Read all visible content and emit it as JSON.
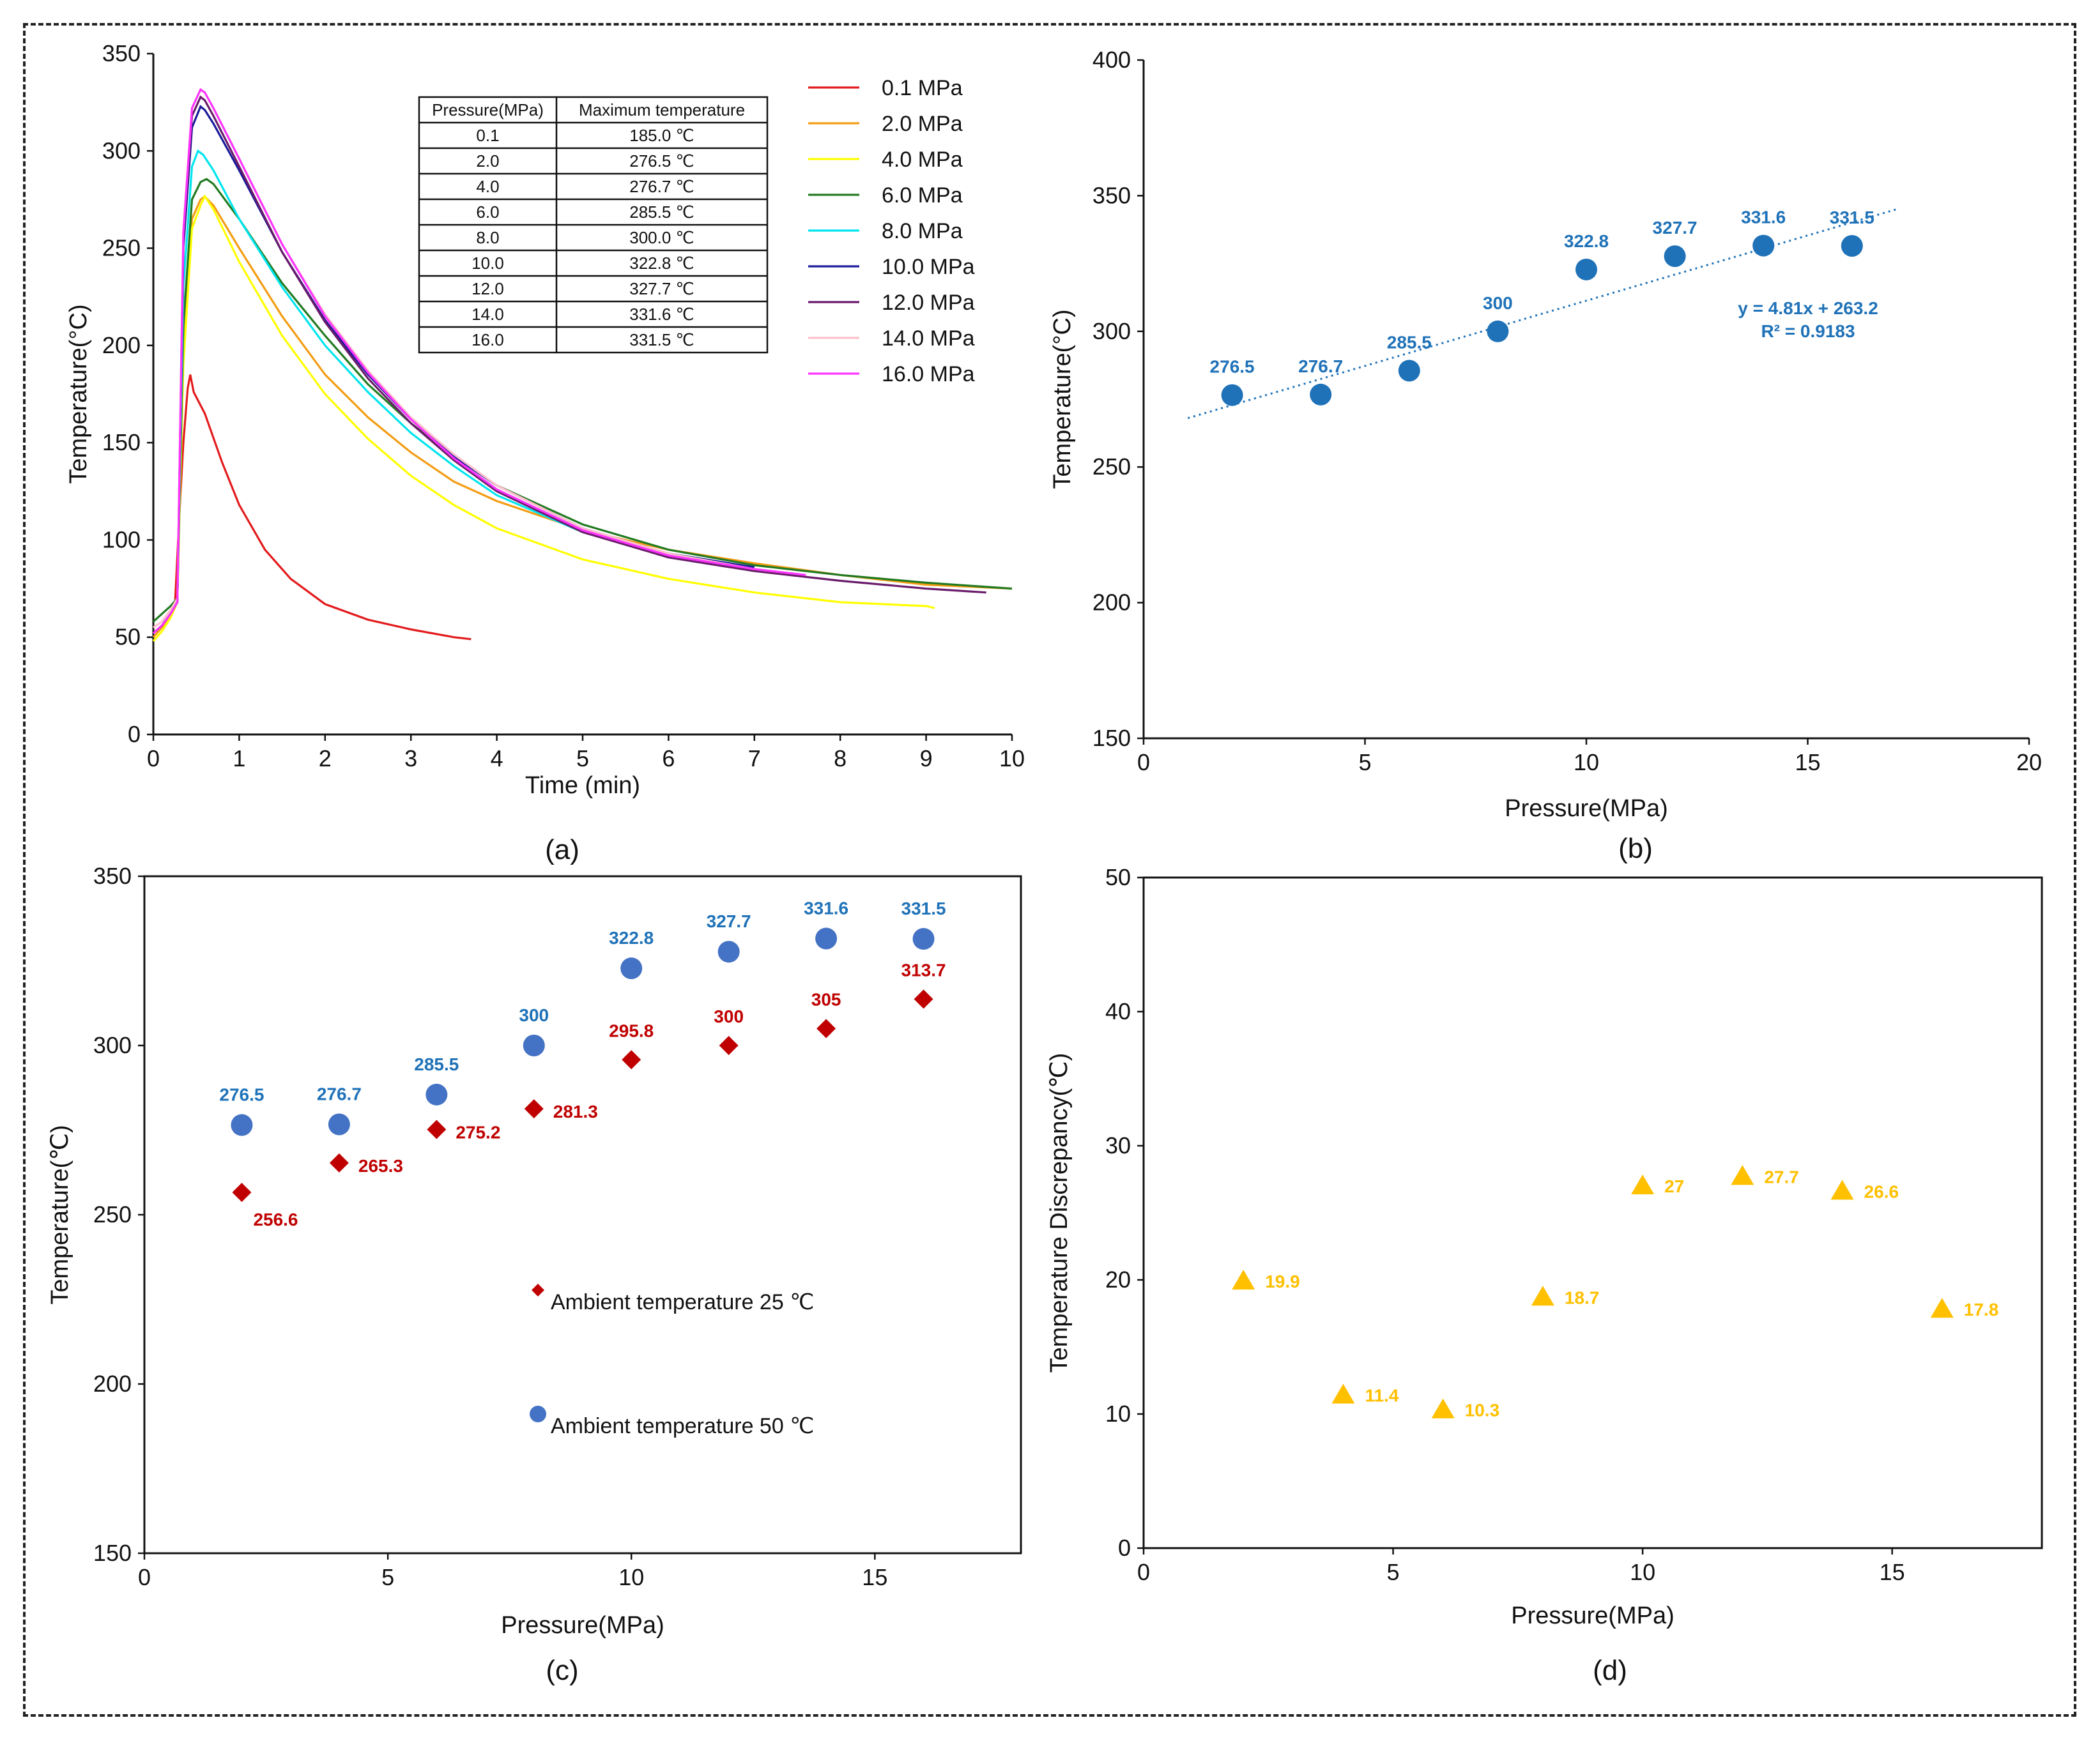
{
  "colors": {
    "blue_point": "#1f72b8",
    "blue_point_c": "#4472c4",
    "red_point": "#c00000",
    "yellow_point": "#ffc000",
    "axis": "#111111"
  },
  "chart_data": [
    {
      "id": "a",
      "type": "line",
      "caption": "(a)",
      "xlabel": "Time (min)",
      "ylabel": "Temperature(°C)",
      "xlim": [
        0,
        10
      ],
      "ylim": [
        0,
        350
      ],
      "xticks": [
        0,
        1,
        2,
        3,
        4,
        5,
        6,
        7,
        8,
        9,
        10
      ],
      "yticks": [
        0,
        50,
        100,
        150,
        200,
        250,
        300,
        350
      ],
      "series": [
        {
          "name": "0.1 MPa",
          "color": "#e31a1c",
          "points": [
            [
              0,
              52
            ],
            [
              0.1,
              56
            ],
            [
              0.2,
              62
            ],
            [
              0.25,
              65
            ],
            [
              0.3,
              110
            ],
            [
              0.35,
              150
            ],
            [
              0.4,
              178
            ],
            [
              0.43,
              185
            ],
            [
              0.47,
              176
            ],
            [
              0.6,
              165
            ],
            [
              0.8,
              140
            ],
            [
              1.0,
              118
            ],
            [
              1.3,
              95
            ],
            [
              1.6,
              80
            ],
            [
              2.0,
              67
            ],
            [
              2.5,
              59
            ],
            [
              3.0,
              54
            ],
            [
              3.5,
              50
            ],
            [
              3.7,
              49
            ]
          ]
        },
        {
          "name": "2.0 MPa",
          "color": "#f39c12",
          "points": [
            [
              0,
              50
            ],
            [
              0.1,
              55
            ],
            [
              0.2,
              62
            ],
            [
              0.28,
              70
            ],
            [
              0.35,
              200
            ],
            [
              0.45,
              265
            ],
            [
              0.55,
              275
            ],
            [
              0.6,
              276.5
            ],
            [
              0.7,
              272
            ],
            [
              1.0,
              250
            ],
            [
              1.5,
              215
            ],
            [
              2.0,
              185
            ],
            [
              2.5,
              163
            ],
            [
              3.0,
              145
            ],
            [
              3.5,
              130
            ],
            [
              4.0,
              120
            ],
            [
              5.0,
              105
            ],
            [
              6.0,
              95
            ],
            [
              7.0,
              88
            ],
            [
              8.0,
              82
            ],
            [
              9.0,
              77
            ],
            [
              10,
              75
            ]
          ]
        },
        {
          "name": "4.0 MPa",
          "color": "#ffff00",
          "points": [
            [
              0,
              48
            ],
            [
              0.1,
              53
            ],
            [
              0.2,
              60
            ],
            [
              0.28,
              68
            ],
            [
              0.35,
              190
            ],
            [
              0.45,
              260
            ],
            [
              0.55,
              272
            ],
            [
              0.6,
              276.7
            ],
            [
              0.7,
              270
            ],
            [
              1.0,
              243
            ],
            [
              1.5,
              205
            ],
            [
              2.0,
              175
            ],
            [
              2.5,
              152
            ],
            [
              3.0,
              133
            ],
            [
              3.5,
              118
            ],
            [
              4.0,
              106
            ],
            [
              5.0,
              90
            ],
            [
              6.0,
              80
            ],
            [
              7.0,
              73
            ],
            [
              8.0,
              68
            ],
            [
              9.0,
              66
            ],
            [
              9.1,
              65
            ]
          ]
        },
        {
          "name": "6.0 MPa",
          "color": "#217a21",
          "points": [
            [
              0,
              58
            ],
            [
              0.1,
              62
            ],
            [
              0.2,
              66
            ],
            [
              0.28,
              70
            ],
            [
              0.35,
              210
            ],
            [
              0.45,
              275
            ],
            [
              0.55,
              284
            ],
            [
              0.62,
              285.5
            ],
            [
              0.7,
              283
            ],
            [
              1.0,
              265
            ],
            [
              1.5,
              232
            ],
            [
              2.0,
              205
            ],
            [
              2.5,
              180
            ],
            [
              3.0,
              160
            ],
            [
              3.5,
              143
            ],
            [
              4.0,
              128
            ],
            [
              5.0,
              108
            ],
            [
              6.0,
              95
            ],
            [
              7.0,
              87
            ],
            [
              8.0,
              82
            ],
            [
              9.0,
              78
            ],
            [
              10,
              75
            ]
          ]
        },
        {
          "name": "8.0 MPa",
          "color": "#00e5ee",
          "points": [
            [
              0,
              52
            ],
            [
              0.1,
              56
            ],
            [
              0.2,
              62
            ],
            [
              0.28,
              68
            ],
            [
              0.35,
              230
            ],
            [
              0.45,
              292
            ],
            [
              0.52,
              300
            ],
            [
              0.58,
              298
            ],
            [
              0.7,
              290
            ],
            [
              1.0,
              265
            ],
            [
              1.5,
              230
            ],
            [
              2.0,
              200
            ],
            [
              2.5,
              176
            ],
            [
              3.0,
              155
            ],
            [
              3.5,
              138
            ],
            [
              4.0,
              123
            ],
            [
              5.0,
              104
            ],
            [
              6.0,
              92
            ],
            [
              7.0,
              85
            ]
          ]
        },
        {
          "name": "10.0 MPa",
          "color": "#1a1a9a",
          "points": [
            [
              0,
              52
            ],
            [
              0.1,
              56
            ],
            [
              0.2,
              62
            ],
            [
              0.28,
              68
            ],
            [
              0.35,
              250
            ],
            [
              0.45,
              312
            ],
            [
              0.55,
              322.8
            ],
            [
              0.6,
              321
            ],
            [
              0.7,
              314
            ],
            [
              1.0,
              290
            ],
            [
              1.5,
              248
            ],
            [
              2.0,
              213
            ],
            [
              2.5,
              185
            ],
            [
              3.0,
              162
            ],
            [
              3.5,
              143
            ],
            [
              4.0,
              128
            ],
            [
              5.0,
              106
            ],
            [
              6.0,
              93
            ],
            [
              7.0,
              86
            ]
          ]
        },
        {
          "name": "12.0 MPa",
          "color": "#6a1b6a",
          "points": [
            [
              0,
              52
            ],
            [
              0.1,
              56
            ],
            [
              0.2,
              62
            ],
            [
              0.28,
              68
            ],
            [
              0.35,
              255
            ],
            [
              0.45,
              318
            ],
            [
              0.55,
              327.7
            ],
            [
              0.6,
              326
            ],
            [
              0.7,
              318
            ],
            [
              1.0,
              292
            ],
            [
              1.5,
              248
            ],
            [
              2.0,
              212
            ],
            [
              2.5,
              183
            ],
            [
              3.0,
              160
            ],
            [
              3.5,
              141
            ],
            [
              4.0,
              125
            ],
            [
              5.0,
              104
            ],
            [
              6.0,
              91
            ],
            [
              7.0,
              84
            ],
            [
              8.0,
              79
            ],
            [
              9.0,
              75
            ],
            [
              9.7,
              73
            ]
          ]
        },
        {
          "name": "14.0 MPa",
          "color": "#ffc0cb",
          "points": [
            [
              0,
              55
            ],
            [
              0.1,
              58
            ],
            [
              0.2,
              64
            ],
            [
              0.28,
              70
            ],
            [
              0.35,
              260
            ],
            [
              0.45,
              322
            ],
            [
              0.55,
              331.6
            ],
            [
              0.6,
              330
            ],
            [
              0.7,
              322
            ],
            [
              1.0,
              296
            ],
            [
              1.5,
              252
            ],
            [
              2.0,
              216
            ],
            [
              2.5,
              187
            ],
            [
              3.0,
              163
            ],
            [
              3.5,
              144
            ],
            [
              4.0,
              128
            ],
            [
              5.0,
              106
            ],
            [
              6.0,
              93
            ],
            [
              7.0,
              85
            ],
            [
              7.6,
              82
            ]
          ]
        },
        {
          "name": "16.0 MPa",
          "color": "#ff33ff",
          "points": [
            [
              0,
              52
            ],
            [
              0.1,
              56
            ],
            [
              0.2,
              62
            ],
            [
              0.28,
              68
            ],
            [
              0.35,
              258
            ],
            [
              0.45,
              322
            ],
            [
              0.55,
              331.5
            ],
            [
              0.6,
              330
            ],
            [
              0.7,
              322
            ],
            [
              1.0,
              296
            ],
            [
              1.5,
              252
            ],
            [
              2.0,
              215
            ],
            [
              2.5,
              186
            ],
            [
              3.0,
              162
            ],
            [
              3.5,
              142
            ],
            [
              4.0,
              126
            ],
            [
              5.0,
              105
            ],
            [
              6.0,
              92
            ],
            [
              7.0,
              85
            ],
            [
              7.6,
              82
            ]
          ]
        }
      ],
      "table": {
        "headers": [
          "Pressure(MPa)",
          "Maximum temperature"
        ],
        "rows": [
          [
            "0.1",
            "185.0 ℃"
          ],
          [
            "2.0",
            "276.5 ℃"
          ],
          [
            "4.0",
            "276.7 ℃"
          ],
          [
            "6.0",
            "285.5 ℃"
          ],
          [
            "8.0",
            "300.0 ℃"
          ],
          [
            "10.0",
            "322.8 ℃"
          ],
          [
            "12.0",
            "327.7 ℃"
          ],
          [
            "14.0",
            "331.6 ℃"
          ],
          [
            "16.0",
            "331.5 ℃"
          ]
        ]
      }
    },
    {
      "id": "b",
      "type": "scatter",
      "caption": "(b)",
      "xlabel": "Pressure(MPa)",
      "ylabel": "Temperature(°C)",
      "xlim": [
        0,
        20
      ],
      "ylim": [
        150,
        400
      ],
      "xticks": [
        0,
        5,
        10,
        15,
        20
      ],
      "yticks": [
        150,
        200,
        250,
        300,
        350,
        400
      ],
      "points": [
        [
          2,
          276.5
        ],
        [
          4,
          276.7
        ],
        [
          6,
          285.5
        ],
        [
          8,
          300
        ],
        [
          10,
          322.8
        ],
        [
          12,
          327.7
        ],
        [
          14,
          331.6
        ],
        [
          16,
          331.5
        ]
      ],
      "labels": [
        "276.5",
        "276.7",
        "285.5",
        "300",
        "322.8",
        "327.7",
        "331.6",
        "331.5"
      ],
      "trendline": {
        "slope": 4.81,
        "intercept": 263.2,
        "x_range": [
          1,
          17
        ]
      },
      "equation": "y = 4.81x + 263.2",
      "r2": "R² = 0.9183"
    },
    {
      "id": "c",
      "type": "scatter",
      "caption": "(c)",
      "xlabel": "Pressure(MPa)",
      "ylabel": "Temperature(℃)",
      "xlim": [
        0,
        18
      ],
      "ylim": [
        150,
        350
      ],
      "xticks": [
        0,
        5,
        10,
        15
      ],
      "yticks": [
        150,
        200,
        250,
        300,
        350
      ],
      "series": [
        {
          "name": "Ambient temperature 25 ℃",
          "marker": "diamond",
          "points": [
            [
              2,
              256.6
            ],
            [
              4,
              265.3
            ],
            [
              6,
              275.2
            ],
            [
              8,
              281.3
            ],
            [
              10,
              295.8
            ],
            [
              12,
              300
            ],
            [
              14,
              305
            ],
            [
              16,
              313.7
            ]
          ],
          "labels": [
            "256.6",
            "265.3",
            "275.2",
            "281.3",
            "295.8",
            "300",
            "305",
            "313.7"
          ]
        },
        {
          "name": "Ambient temperature 50 ℃",
          "marker": "circle",
          "points": [
            [
              2,
              276.5
            ],
            [
              4,
              276.7
            ],
            [
              6,
              285.5
            ],
            [
              8,
              300
            ],
            [
              10,
              322.8
            ],
            [
              12,
              327.7
            ],
            [
              14,
              331.6
            ],
            [
              16,
              331.5
            ]
          ],
          "labels": [
            "276.5",
            "276.7",
            "285.5",
            "300",
            "322.8",
            "327.7",
            "331.6",
            "331.5"
          ]
        }
      ]
    },
    {
      "id": "d",
      "type": "scatter",
      "caption": "(d)",
      "xlabel": "Pressure(MPa)",
      "ylabel": "Temperature Discrepancy(℃)",
      "xlim": [
        0,
        18
      ],
      "ylim": [
        0,
        50
      ],
      "xticks": [
        0,
        5,
        10,
        15
      ],
      "yticks": [
        0,
        10,
        20,
        30,
        40,
        50
      ],
      "points": [
        [
          2,
          19.9
        ],
        [
          4,
          11.4
        ],
        [
          6,
          10.3
        ],
        [
          8,
          18.7
        ],
        [
          10,
          27
        ],
        [
          12,
          27.7
        ],
        [
          14,
          26.6
        ],
        [
          16,
          17.8
        ]
      ],
      "labels": [
        "19.9",
        "11.4",
        "10.3",
        "18.7",
        "27",
        "27.7",
        "26.6",
        "17.8"
      ]
    }
  ]
}
